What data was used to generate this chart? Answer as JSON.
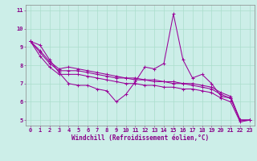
{
  "title": "",
  "xlabel": "Windchill (Refroidissement éolien,°C)",
  "ylabel": "",
  "bg_color": "#cceee8",
  "line_color": "#990099",
  "grid_color": "#aaddcc",
  "xlim": [
    -0.5,
    23.5
  ],
  "ylim": [
    4.7,
    11.3
  ],
  "yticks": [
    5,
    6,
    7,
    8,
    9,
    10,
    11
  ],
  "xticks": [
    0,
    1,
    2,
    3,
    4,
    5,
    6,
    7,
    8,
    9,
    10,
    11,
    12,
    13,
    14,
    15,
    16,
    17,
    18,
    19,
    20,
    21,
    22,
    23
  ],
  "series": [
    [
      9.3,
      9.1,
      8.3,
      7.6,
      7.0,
      6.9,
      6.9,
      6.7,
      6.6,
      6.0,
      6.4,
      7.1,
      7.9,
      7.8,
      8.1,
      10.8,
      8.3,
      7.3,
      7.5,
      7.0,
      6.3,
      6.2,
      5.0,
      5.0
    ],
    [
      9.3,
      8.8,
      8.2,
      7.8,
      7.9,
      7.8,
      7.7,
      7.6,
      7.5,
      7.4,
      7.3,
      7.3,
      7.2,
      7.2,
      7.1,
      7.1,
      7.0,
      7.0,
      6.9,
      6.8,
      6.5,
      6.3,
      5.0,
      5.0
    ],
    [
      9.3,
      8.7,
      8.1,
      7.7,
      7.7,
      7.7,
      7.6,
      7.5,
      7.4,
      7.3,
      7.3,
      7.2,
      7.2,
      7.1,
      7.1,
      7.0,
      7.0,
      6.9,
      6.8,
      6.7,
      6.4,
      6.2,
      5.0,
      5.0
    ],
    [
      9.3,
      8.5,
      7.9,
      7.5,
      7.5,
      7.5,
      7.4,
      7.3,
      7.2,
      7.1,
      7.0,
      7.0,
      6.9,
      6.9,
      6.8,
      6.8,
      6.7,
      6.7,
      6.6,
      6.5,
      6.2,
      6.0,
      4.9,
      5.0
    ]
  ],
  "tick_fontsize": 5.0,
  "xlabel_fontsize": 5.5,
  "tick_color": "#880088",
  "spine_color": "#888888"
}
